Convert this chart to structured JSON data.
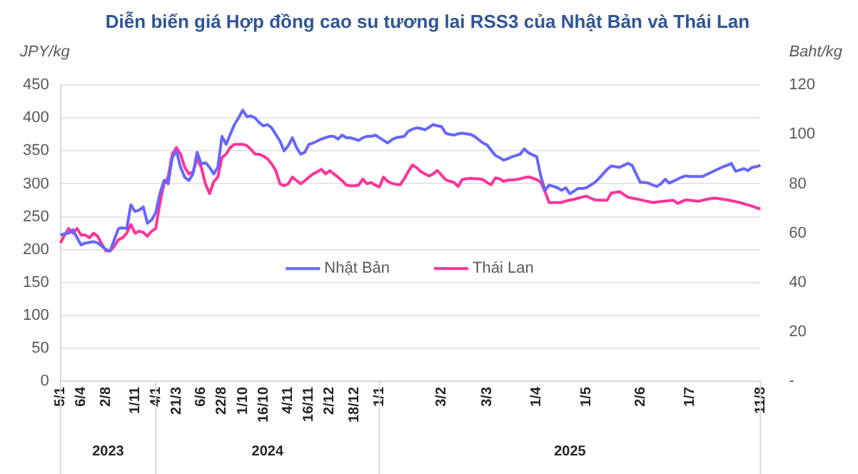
{
  "chart_data": {
    "type": "line",
    "title": "Diễn biến giá Hợp đồng cao su tương lai RSS3 của Nhật Bản và Thái Lan",
    "ylabel": "JPY/kg",
    "y2label": "Baht/kg",
    "categories": [
      "5/1",
      null,
      null,
      null,
      null,
      "6/4",
      null,
      null,
      null,
      null,
      null,
      "2/8",
      null,
      null,
      null,
      null,
      null,
      null,
      "1/11",
      null,
      null,
      null,
      null,
      "4/1",
      null,
      null,
      null,
      null,
      "21/3",
      null,
      null,
      null,
      null,
      null,
      "6/6",
      null,
      null,
      null,
      null,
      "22/8",
      null,
      null,
      null,
      null,
      "1/10",
      null,
      null,
      null,
      null,
      "16/10",
      null,
      null,
      null,
      null,
      null,
      "4/11",
      null,
      null,
      null,
      null,
      "16/11",
      null,
      null,
      null,
      null,
      "2/12",
      null,
      null,
      null,
      null,
      null,
      "18/12",
      null,
      null,
      null,
      null,
      null,
      "1/1",
      null,
      null,
      null,
      null,
      null,
      null,
      null,
      null,
      null,
      null,
      null,
      null,
      null,
      null,
      "3/2",
      null,
      null,
      null,
      null,
      null,
      null,
      null,
      null,
      null,
      null,
      "3/3",
      null,
      null,
      null,
      null,
      null,
      null,
      null,
      null,
      null,
      null,
      null,
      "1/4",
      null,
      null,
      null,
      null,
      null,
      null,
      null,
      null,
      null,
      null,
      null,
      "1/5",
      null,
      null,
      null,
      null,
      null,
      null,
      null,
      null,
      null,
      null,
      null,
      null,
      "2/6",
      null,
      null,
      null,
      null,
      null,
      null,
      null,
      null,
      null,
      null,
      null,
      "1/7",
      null,
      null,
      null,
      null,
      null,
      null,
      null,
      null,
      null,
      null,
      null,
      null,
      null,
      null,
      null,
      null,
      "11/8"
    ],
    "series": [
      {
        "name": "Nhật Bản",
        "color": "#6666ff",
        "values": [
          222,
          224,
          225,
          230,
          218,
          207,
          210,
          211,
          212,
          210,
          205,
          200,
          198,
          215,
          232,
          233,
          232,
          268,
          258,
          260,
          265,
          240,
          245,
          256,
          285,
          305,
          300,
          340,
          350,
          325,
          310,
          305,
          315,
          348,
          330,
          332,
          325,
          315,
          325,
          372,
          360,
          375,
          390,
          400,
          412,
          402,
          403,
          400,
          393,
          388,
          390,
          385,
          375,
          365,
          350,
          358,
          370,
          355,
          345,
          348,
          360,
          362,
          365,
          368,
          370,
          372,
          372,
          368,
          374,
          370,
          370,
          368,
          366,
          370,
          372,
          372,
          374,
          370,
          366,
          362,
          367,
          370,
          371,
          372,
          380,
          383,
          385,
          384,
          382,
          386,
          390,
          388,
          387,
          377,
          375,
          374,
          376,
          377,
          376,
          375,
          372,
          367,
          362,
          359,
          351,
          343,
          340,
          336,
          338,
          341,
          343,
          345,
          353,
          347,
          344,
          341,
          311,
          290,
          298,
          296,
          294,
          290,
          294,
          285,
          289,
          293,
          293,
          294,
          298,
          302,
          308,
          315,
          322,
          327,
          326,
          325,
          328,
          331,
          328,
          315,
          302,
          302,
          301,
          298,
          296,
          300,
          307,
          301,
          304,
          307,
          310,
          312,
          311,
          311,
          311,
          311,
          314,
          317,
          320,
          323,
          326,
          328,
          331,
          319,
          321,
          323,
          320,
          325,
          326,
          328
        ]
      },
      {
        "name": "Thái Lan",
        "color": "#ff3399",
        "axis": "y2",
        "values": [
          56.0,
          59.2,
          61.9,
          60.0,
          61.9,
          59.2,
          59.2,
          58.1,
          60.0,
          58.7,
          55.5,
          52.8,
          52.8,
          54.7,
          57.3,
          58.1,
          60.0,
          63.5,
          60.0,
          60.8,
          60.3,
          58.7,
          60.8,
          61.9,
          72.0,
          80.0,
          82.7,
          92.0,
          94.7,
          92.0,
          86.7,
          84.0,
          84.8,
          90.1,
          86.7,
          80.0,
          76.0,
          80.8,
          82.7,
          90.7,
          92.0,
          94.7,
          96.0,
          96.0,
          96.0,
          95.5,
          93.9,
          92.0,
          92.0,
          91.2,
          90.1,
          88.0,
          85.3,
          80.0,
          79.2,
          80.0,
          82.7,
          81.3,
          80.0,
          81.3,
          82.7,
          84.0,
          84.8,
          85.9,
          84.0,
          85.3,
          84.0,
          82.7,
          81.3,
          79.5,
          79.2,
          79.2,
          79.5,
          81.9,
          80.0,
          80.5,
          79.5,
          78.7,
          82.7,
          81.0,
          80.2,
          79.8,
          79.6,
          82.0,
          85.0,
          87.6,
          86.5,
          85.0,
          84.0,
          83.2,
          84.0,
          85.4,
          83.5,
          81.7,
          81.0,
          80.6,
          78.9,
          81.7,
          82.0,
          82.2,
          82.0,
          82.0,
          81.7,
          80.5,
          79.6,
          82.4,
          82.0,
          81.0,
          81.5,
          81.5,
          81.7,
          82.0,
          82.5,
          82.8,
          82.3,
          81.7,
          80.6,
          76.8,
          72.4,
          72.4,
          72.4,
          72.4,
          73.0,
          73.4,
          73.7,
          74.2,
          74.6,
          75.0,
          74.2,
          73.5,
          73.4,
          73.3,
          73.3,
          76.3,
          76.5,
          76.8,
          75.7,
          74.6,
          74.2,
          73.9,
          73.5,
          73.1,
          72.8,
          72.4,
          72.6,
          72.8,
          73.0,
          73.2,
          73.3,
          72.0,
          72.8,
          73.5,
          73.3,
          73.1,
          72.9,
          73.3,
          73.7,
          74.0,
          74.2,
          74.0,
          73.7,
          73.5,
          73.1,
          72.8,
          72.4,
          71.9,
          71.4,
          70.9,
          70.3,
          69.8
        ]
      }
    ],
    "ylim": [
      0,
      450
    ],
    "yticks": [
      0,
      50,
      100,
      150,
      200,
      250,
      300,
      350,
      400,
      450
    ],
    "y2lim": [
      0,
      120
    ],
    "y2ticks": [
      {
        "value": 0,
        "label": "-"
      },
      20,
      40,
      60,
      80,
      100,
      120
    ],
    "annotations": [
      "2023",
      "2024",
      "2025"
    ],
    "grid": "y",
    "legend": "center",
    "marker": "none",
    "line_style": "solid"
  }
}
